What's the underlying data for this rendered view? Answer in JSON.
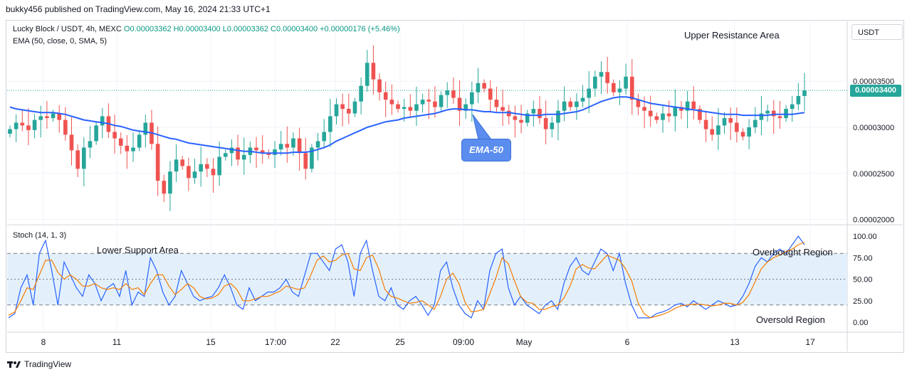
{
  "header": {
    "text": "bukky456 published on TradingView.com, May 16, 2024 21:33 UTC+1"
  },
  "legend": {
    "symbol": "Lucky Block / USDT, 4h, MEXC",
    "ohlc": "O0.00003362 H0.00003400 L0.00003362 C0.00003400 +0.00000176 (+5.46%)",
    "ema": "EMA (50, close, 0, SMA, 5)",
    "stoch": "Stoch (14, 1, 3)"
  },
  "currency": "USDT",
  "last_price": "0.00003400",
  "annotations": {
    "upper": "Upper Resistance Area",
    "lower": "Lower Support Area",
    "overbought": "Overbought Region",
    "oversold": "Oversold Region",
    "ema": "EMA-50"
  },
  "footer": {
    "brand": "TradingView"
  },
  "colors": {
    "up": "#26a69a",
    "down": "#ef5350",
    "ema": "#2962ff",
    "k": "#2962ff",
    "d": "#f57c00",
    "band": "#e3f0fc"
  },
  "chart_data": [
    {
      "type": "candlestick",
      "title": "Lucky Block / USDT, 4h, MEXC",
      "xlabel": "",
      "ylabel": "",
      "x_ticks": [
        "8",
        "11",
        "15",
        "17:00",
        "22",
        "25",
        "09:00",
        "May",
        "6",
        "13",
        "17"
      ],
      "y_ticks": [
        "0.00002000",
        "0.00002500",
        "0.00003000",
        "0.00003500"
      ],
      "ylim": [
        1.95e-05,
        4.15e-05
      ],
      "close_series": [
        2.98,
        3.05,
        3.02,
        2.97,
        3.08,
        3.12,
        3.1,
        3.15,
        3.08,
        2.92,
        2.75,
        2.55,
        2.78,
        2.85,
        3.02,
        3.12,
        2.95,
        2.88,
        2.8,
        2.74,
        2.78,
        2.92,
        3.05,
        2.82,
        2.42,
        2.28,
        2.52,
        2.65,
        2.58,
        2.45,
        2.52,
        2.6,
        2.55,
        2.48,
        2.68,
        2.72,
        2.78,
        2.65,
        2.7,
        2.78,
        2.75,
        2.72,
        2.7,
        2.76,
        2.82,
        2.78,
        2.88,
        2.72,
        2.55,
        2.78,
        2.85,
        2.95,
        3.12,
        3.25,
        3.2,
        3.15,
        3.28,
        3.45,
        3.7,
        3.52,
        3.38,
        3.3,
        3.25,
        3.2,
        3.22,
        3.18,
        3.25,
        3.3,
        3.28,
        3.22,
        3.35,
        3.4,
        3.32,
        3.18,
        3.25,
        3.38,
        3.48,
        3.42,
        3.3,
        3.22,
        3.18,
        3.12,
        3.08,
        3.05,
        3.15,
        3.2,
        3.1,
        2.98,
        3.05,
        3.18,
        3.28,
        3.22,
        3.28,
        3.32,
        3.42,
        3.55,
        3.6,
        3.48,
        3.38,
        3.42,
        3.55,
        3.3,
        3.22,
        3.18,
        3.12,
        3.08,
        3.15,
        3.12,
        3.22,
        3.18,
        3.28,
        3.2,
        3.08,
        2.98,
        2.92,
        3.02,
        3.1,
        3.05,
        2.95,
        2.9,
        3.0,
        3.08,
        3.15,
        3.18,
        3.12,
        3.1,
        3.2,
        3.25,
        3.34,
        3.4
      ],
      "ema50_series": [
        3.22,
        3.2,
        3.19,
        3.18,
        3.17,
        3.16,
        3.16,
        3.16,
        3.15,
        3.14,
        3.12,
        3.1,
        3.08,
        3.07,
        3.06,
        3.05,
        3.04,
        3.02,
        3.01,
        2.99,
        2.97,
        2.96,
        2.95,
        2.94,
        2.92,
        2.9,
        2.88,
        2.87,
        2.85,
        2.83,
        2.82,
        2.81,
        2.8,
        2.79,
        2.78,
        2.77,
        2.76,
        2.75,
        2.74,
        2.74,
        2.73,
        2.72,
        2.72,
        2.72,
        2.72,
        2.72,
        2.73,
        2.73,
        2.73,
        2.74,
        2.76,
        2.78,
        2.81,
        2.85,
        2.88,
        2.91,
        2.94,
        2.97,
        3.0,
        3.02,
        3.04,
        3.06,
        3.07,
        3.08,
        3.1,
        3.11,
        3.12,
        3.13,
        3.14,
        3.15,
        3.17,
        3.19,
        3.2,
        3.2,
        3.19,
        3.19,
        3.18,
        3.17,
        3.17,
        3.16,
        3.16,
        3.16,
        3.15,
        3.14,
        3.13,
        3.13,
        3.13,
        3.14,
        3.14,
        3.14,
        3.15,
        3.16,
        3.17,
        3.19,
        3.22,
        3.25,
        3.28,
        3.3,
        3.32,
        3.33,
        3.33,
        3.32,
        3.3,
        3.28,
        3.26,
        3.25,
        3.24,
        3.23,
        3.22,
        3.21,
        3.2,
        3.19,
        3.18,
        3.17,
        3.16,
        3.15,
        3.14,
        3.14,
        3.14,
        3.13,
        3.13,
        3.13,
        3.13,
        3.13,
        3.14,
        3.14,
        3.14,
        3.14,
        3.15,
        3.16
      ]
    },
    {
      "type": "line",
      "title": "Stoch (14, 1, 3)",
      "y_ticks": [
        "0.00",
        "25.00",
        "50.00",
        "75.00",
        "100.00"
      ],
      "ylim": [
        0,
        100
      ],
      "levels": [
        20,
        50,
        80
      ],
      "series": [
        {
          "name": "%K",
          "values": [
            5,
            10,
            40,
            55,
            20,
            80,
            95,
            60,
            20,
            70,
            55,
            40,
            30,
            55,
            45,
            25,
            40,
            45,
            30,
            60,
            20,
            35,
            30,
            75,
            60,
            35,
            20,
            30,
            60,
            45,
            30,
            25,
            28,
            30,
            40,
            55,
            40,
            20,
            15,
            40,
            25,
            30,
            35,
            35,
            40,
            50,
            35,
            30,
            55,
            80,
            80,
            70,
            60,
            85,
            90,
            70,
            30,
            80,
            95,
            60,
            30,
            25,
            40,
            20,
            15,
            25,
            30,
            20,
            8,
            20,
            60,
            70,
            40,
            20,
            10,
            5,
            25,
            15,
            60,
            80,
            85,
            40,
            20,
            30,
            20,
            15,
            10,
            20,
            25,
            15,
            45,
            65,
            75,
            60,
            55,
            70,
            85,
            80,
            60,
            80,
            45,
            20,
            5,
            5,
            5,
            10,
            12,
            15,
            20,
            22,
            18,
            25,
            20,
            15,
            20,
            25,
            22,
            18,
            20,
            30,
            45,
            65,
            75,
            70,
            80,
            85,
            80,
            90,
            100,
            90
          ]
        },
        {
          "name": "%D",
          "values": [
            8,
            12,
            25,
            40,
            38,
            55,
            72,
            72,
            58,
            50,
            55,
            50,
            42,
            42,
            45,
            40,
            38,
            40,
            38,
            45,
            38,
            40,
            32,
            45,
            55,
            55,
            42,
            32,
            38,
            45,
            40,
            30,
            27,
            28,
            32,
            42,
            45,
            38,
            25,
            25,
            27,
            30,
            30,
            33,
            36,
            42,
            40,
            38,
            40,
            55,
            72,
            77,
            70,
            72,
            78,
            80,
            62,
            60,
            75,
            78,
            62,
            38,
            30,
            28,
            25,
            22,
            23,
            25,
            20,
            15,
            30,
            50,
            57,
            45,
            23,
            12,
            13,
            15,
            33,
            52,
            75,
            68,
            48,
            30,
            23,
            22,
            15,
            15,
            18,
            20,
            28,
            42,
            62,
            67,
            63,
            62,
            70,
            78,
            75,
            72,
            62,
            48,
            23,
            10,
            5,
            7,
            9,
            12,
            16,
            19,
            20,
            21,
            21,
            20,
            19,
            20,
            22,
            22,
            20,
            23,
            32,
            47,
            62,
            70,
            75,
            78,
            82,
            85,
            90,
            93
          ]
        }
      ]
    }
  ]
}
